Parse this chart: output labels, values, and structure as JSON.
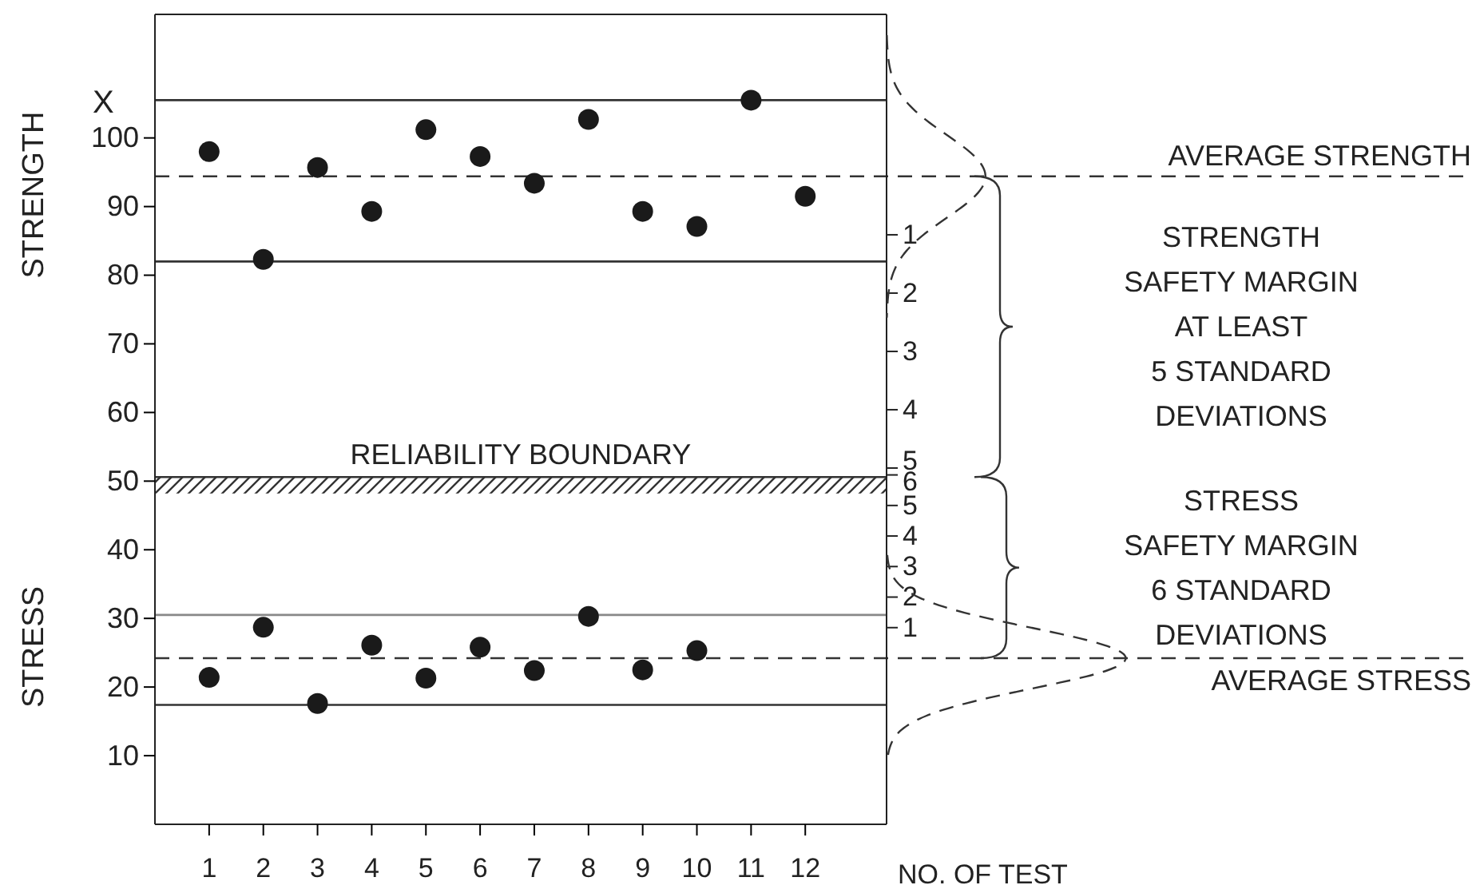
{
  "chart_data": {
    "type": "scatter",
    "xlabel": "NO. OF TEST",
    "ylabel": "X",
    "xlim": [
      0,
      13.5
    ],
    "xticks": [
      1,
      2,
      3,
      4,
      5,
      6,
      7,
      8,
      9,
      10,
      11,
      12
    ],
    "ylim": [
      0,
      118
    ],
    "yticks": [
      10,
      20,
      30,
      40,
      50,
      60,
      70,
      80,
      90,
      100
    ],
    "y2lim": [
      11.11,
      -2.78
    ],
    "y2ticks": [
      1,
      2,
      3,
      4,
      5
    ],
    "y3lim": [
      -5.44,
      21.08
    ],
    "y3ticks": [
      1,
      2,
      3,
      4,
      5,
      6
    ],
    "marker": "circle",
    "series": [
      {
        "color": "#1a1a1a",
        "x": [
          1,
          2,
          3,
          4,
          5,
          6,
          7,
          8,
          9,
          10,
          11,
          12
        ],
        "values": [
          98.0,
          82.3,
          95.7,
          89.3,
          101.2,
          97.3,
          93.4,
          102.7,
          89.3,
          87.1,
          105.5,
          91.5
        ]
      },
      {
        "color": "#1a1a1a",
        "x": [
          1,
          2,
          3,
          4,
          5,
          6,
          7,
          8,
          9,
          10
        ],
        "values": [
          21.4,
          28.7,
          17.6,
          26.1,
          21.3,
          25.8,
          22.4,
          30.3,
          22.5,
          25.3
        ]
      }
    ],
    "ref_lines": [
      {
        "axis": "y",
        "value": 105.5,
        "color": "#333333",
        "line_style": "solid"
      },
      {
        "axis": "y",
        "value": 94.4,
        "label": "AVERAGE STRENGTH",
        "color": "#333333",
        "line_style": "dashed"
      },
      {
        "axis": "y",
        "value": 82.0,
        "color": "#333333",
        "line_style": "solid"
      },
      {
        "axis": "y",
        "value": 30.5,
        "color": "#888888",
        "line_style": "solid"
      },
      {
        "axis": "y",
        "value": 24.2,
        "label": "AVERAGE STRESS",
        "color": "#333333",
        "line_style": "dashed"
      },
      {
        "axis": "y",
        "value": 17.4,
        "color": "#333333",
        "line_style": "solid"
      }
    ],
    "bands": [
      {
        "axis": "y",
        "from": 48.2,
        "to": 50.6,
        "label": "RELIABILITY BOUNDARY",
        "color": "#333333"
      }
    ],
    "annotations": [
      "STRENGTH",
      "STRESS",
      "STRENGTH\nSAFETY MARGIN\nAT LEAST\n5 STANDARD\nDEVIATIONS",
      "STRESS\nSAFETY MARGIN\n6 STANDARD\nDEVIATIONS"
    ]
  }
}
